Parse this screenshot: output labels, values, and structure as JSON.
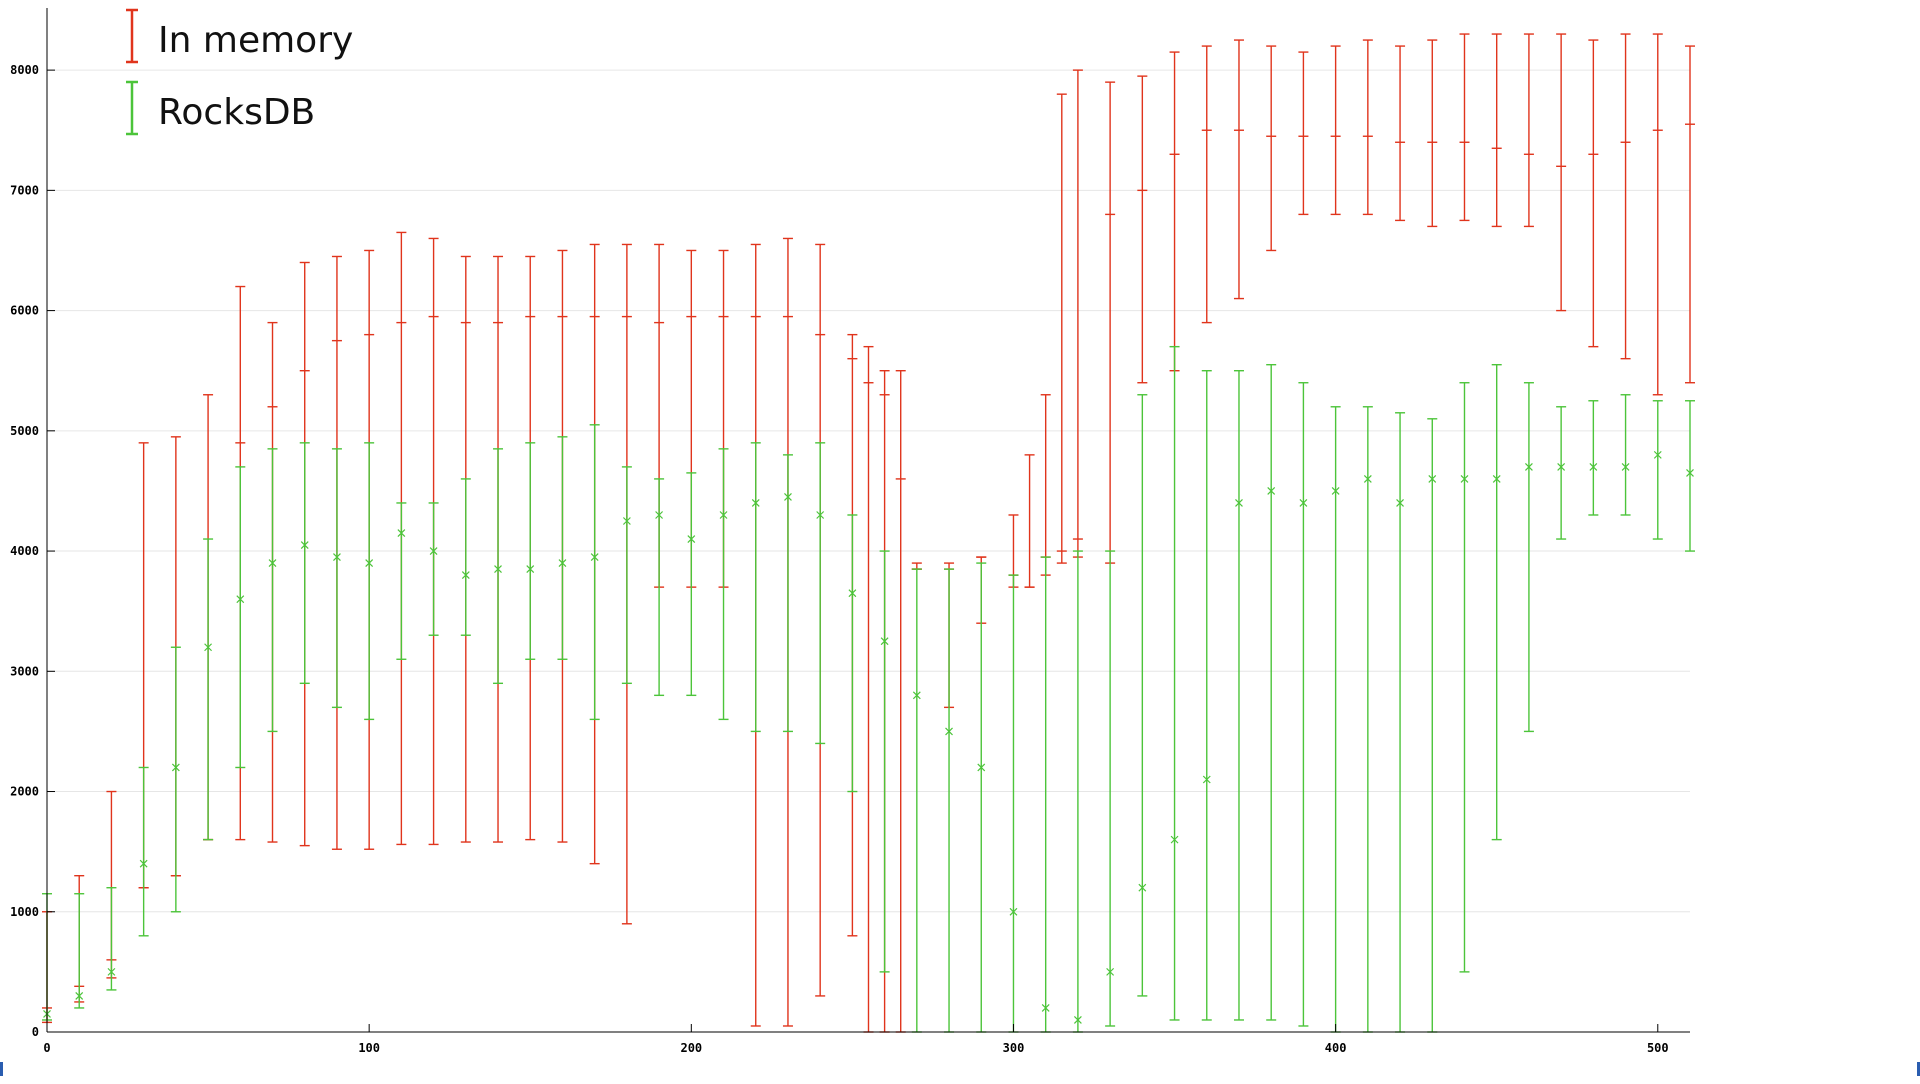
{
  "chart_data": {
    "type": "errorbar",
    "title": "",
    "xlabel": "",
    "ylabel": "",
    "xlim": [
      0,
      510
    ],
    "ylim": [
      0,
      8500
    ],
    "x_ticks": [
      0,
      100,
      200,
      300,
      400,
      500
    ],
    "y_ticks": [
      0,
      1000,
      2000,
      3000,
      4000,
      5000,
      6000,
      7000,
      8000
    ],
    "grid": true,
    "legend_position": "top-left",
    "series": [
      {
        "name": "In memory",
        "color": "#e0341c",
        "marker": "bar",
        "points": [
          [
            0,
            200,
            80,
            1000
          ],
          [
            10,
            380,
            250,
            1300
          ],
          [
            20,
            600,
            450,
            2000
          ],
          [
            30,
            1200,
            1200,
            4900
          ],
          [
            40,
            1300,
            1300,
            4950
          ],
          [
            50,
            1600,
            1600,
            5300
          ],
          [
            60,
            4900,
            1600,
            6200
          ],
          [
            70,
            5200,
            1580,
            5900
          ],
          [
            80,
            5500,
            1550,
            6400
          ],
          [
            90,
            5750,
            1520,
            6450
          ],
          [
            100,
            5800,
            1520,
            6500
          ],
          [
            110,
            5900,
            1560,
            6650
          ],
          [
            120,
            5950,
            1560,
            6600
          ],
          [
            130,
            5900,
            1580,
            6450
          ],
          [
            140,
            5900,
            1580,
            6450
          ],
          [
            150,
            5950,
            1600,
            6450
          ],
          [
            160,
            5950,
            1580,
            6500
          ],
          [
            170,
            5950,
            1400,
            6550
          ],
          [
            180,
            5950,
            900,
            6550
          ],
          [
            190,
            5900,
            3700,
            6550
          ],
          [
            200,
            5950,
            3700,
            6500
          ],
          [
            210,
            5950,
            3700,
            6500
          ],
          [
            220,
            5950,
            50,
            6550
          ],
          [
            230,
            5950,
            50,
            6600
          ],
          [
            240,
            5800,
            300,
            6550
          ],
          [
            250,
            5600,
            800,
            5800
          ],
          [
            255,
            5400,
            0,
            5700
          ],
          [
            260,
            5300,
            0,
            5500
          ],
          [
            265,
            4600,
            0,
            5500
          ],
          [
            270,
            3850,
            3850,
            3900
          ],
          [
            280,
            3850,
            2700,
            3900
          ],
          [
            290,
            3950,
            3400,
            3950
          ],
          [
            300,
            3800,
            3700,
            4300
          ],
          [
            305,
            3700,
            3700,
            4800
          ],
          [
            310,
            3950,
            3800,
            5300
          ],
          [
            315,
            4000,
            3900,
            7800
          ],
          [
            320,
            4100,
            3950,
            8000
          ],
          [
            330,
            6800,
            3900,
            7900
          ],
          [
            340,
            7000,
            5400,
            7950
          ],
          [
            350,
            7300,
            5500,
            8150
          ],
          [
            360,
            7500,
            5900,
            8200
          ],
          [
            370,
            7500,
            6100,
            8250
          ],
          [
            380,
            7450,
            6500,
            8200
          ],
          [
            390,
            7450,
            6800,
            8150
          ],
          [
            400,
            7450,
            6800,
            8200
          ],
          [
            410,
            7450,
            6800,
            8250
          ],
          [
            420,
            7400,
            6750,
            8200
          ],
          [
            430,
            7400,
            6700,
            8250
          ],
          [
            440,
            7400,
            6750,
            8300
          ],
          [
            450,
            7350,
            6700,
            8300
          ],
          [
            460,
            7300,
            6700,
            8300
          ],
          [
            470,
            7200,
            6000,
            8300
          ],
          [
            480,
            7300,
            5700,
            8250
          ],
          [
            490,
            7400,
            5600,
            8300
          ],
          [
            500,
            7500,
            5300,
            8300
          ],
          [
            510,
            7550,
            5400,
            8200
          ]
        ]
      },
      {
        "name": "RocksDB",
        "color": "#4cc43a",
        "marker": "x",
        "points": [
          [
            0,
            150,
            100,
            1150
          ],
          [
            10,
            300,
            200,
            1150
          ],
          [
            20,
            500,
            350,
            1200
          ],
          [
            30,
            1400,
            800,
            2200
          ],
          [
            40,
            2200,
            1000,
            3200
          ],
          [
            50,
            3200,
            1600,
            4100
          ],
          [
            60,
            3600,
            2200,
            4700
          ],
          [
            70,
            3900,
            2500,
            4850
          ],
          [
            80,
            4050,
            2900,
            4900
          ],
          [
            90,
            3950,
            2700,
            4850
          ],
          [
            100,
            3900,
            2600,
            4900
          ],
          [
            110,
            4150,
            3100,
            4400
          ],
          [
            120,
            4000,
            3300,
            4400
          ],
          [
            130,
            3800,
            3300,
            4600
          ],
          [
            140,
            3850,
            2900,
            4850
          ],
          [
            150,
            3850,
            3100,
            4900
          ],
          [
            160,
            3900,
            3100,
            4950
          ],
          [
            170,
            3950,
            2600,
            5050
          ],
          [
            180,
            4250,
            2900,
            4700
          ],
          [
            190,
            4300,
            2800,
            4600
          ],
          [
            200,
            4100,
            2800,
            4650
          ],
          [
            210,
            4300,
            2600,
            4850
          ],
          [
            220,
            4400,
            2500,
            4900
          ],
          [
            230,
            4450,
            2500,
            4800
          ],
          [
            240,
            4300,
            2400,
            4900
          ],
          [
            250,
            3650,
            2000,
            4300
          ],
          [
            260,
            3250,
            500,
            4000
          ],
          [
            270,
            2800,
            0,
            3850
          ],
          [
            280,
            2500,
            0,
            3850
          ],
          [
            290,
            2200,
            0,
            3900
          ],
          [
            300,
            1000,
            0,
            3800
          ],
          [
            310,
            200,
            0,
            3950
          ],
          [
            320,
            100,
            0,
            4000
          ],
          [
            330,
            500,
            50,
            4000
          ],
          [
            340,
            1200,
            300,
            5300
          ],
          [
            350,
            1600,
            100,
            5700
          ],
          [
            360,
            2100,
            100,
            5500
          ],
          [
            370,
            4400,
            100,
            5500
          ],
          [
            380,
            4500,
            100,
            5550
          ],
          [
            390,
            4400,
            50,
            5400
          ],
          [
            400,
            4500,
            0,
            5200
          ],
          [
            410,
            4600,
            0,
            5200
          ],
          [
            420,
            4400,
            0,
            5150
          ],
          [
            430,
            4600,
            0,
            5100
          ],
          [
            440,
            4600,
            500,
            5400
          ],
          [
            450,
            4600,
            1600,
            5550
          ],
          [
            460,
            4700,
            2500,
            5400
          ],
          [
            470,
            4700,
            4100,
            5200
          ],
          [
            480,
            4700,
            4300,
            5250
          ],
          [
            490,
            4700,
            4300,
            5300
          ],
          [
            500,
            4800,
            4100,
            5250
          ],
          [
            510,
            4650,
            4000,
            5250
          ]
        ]
      }
    ]
  }
}
